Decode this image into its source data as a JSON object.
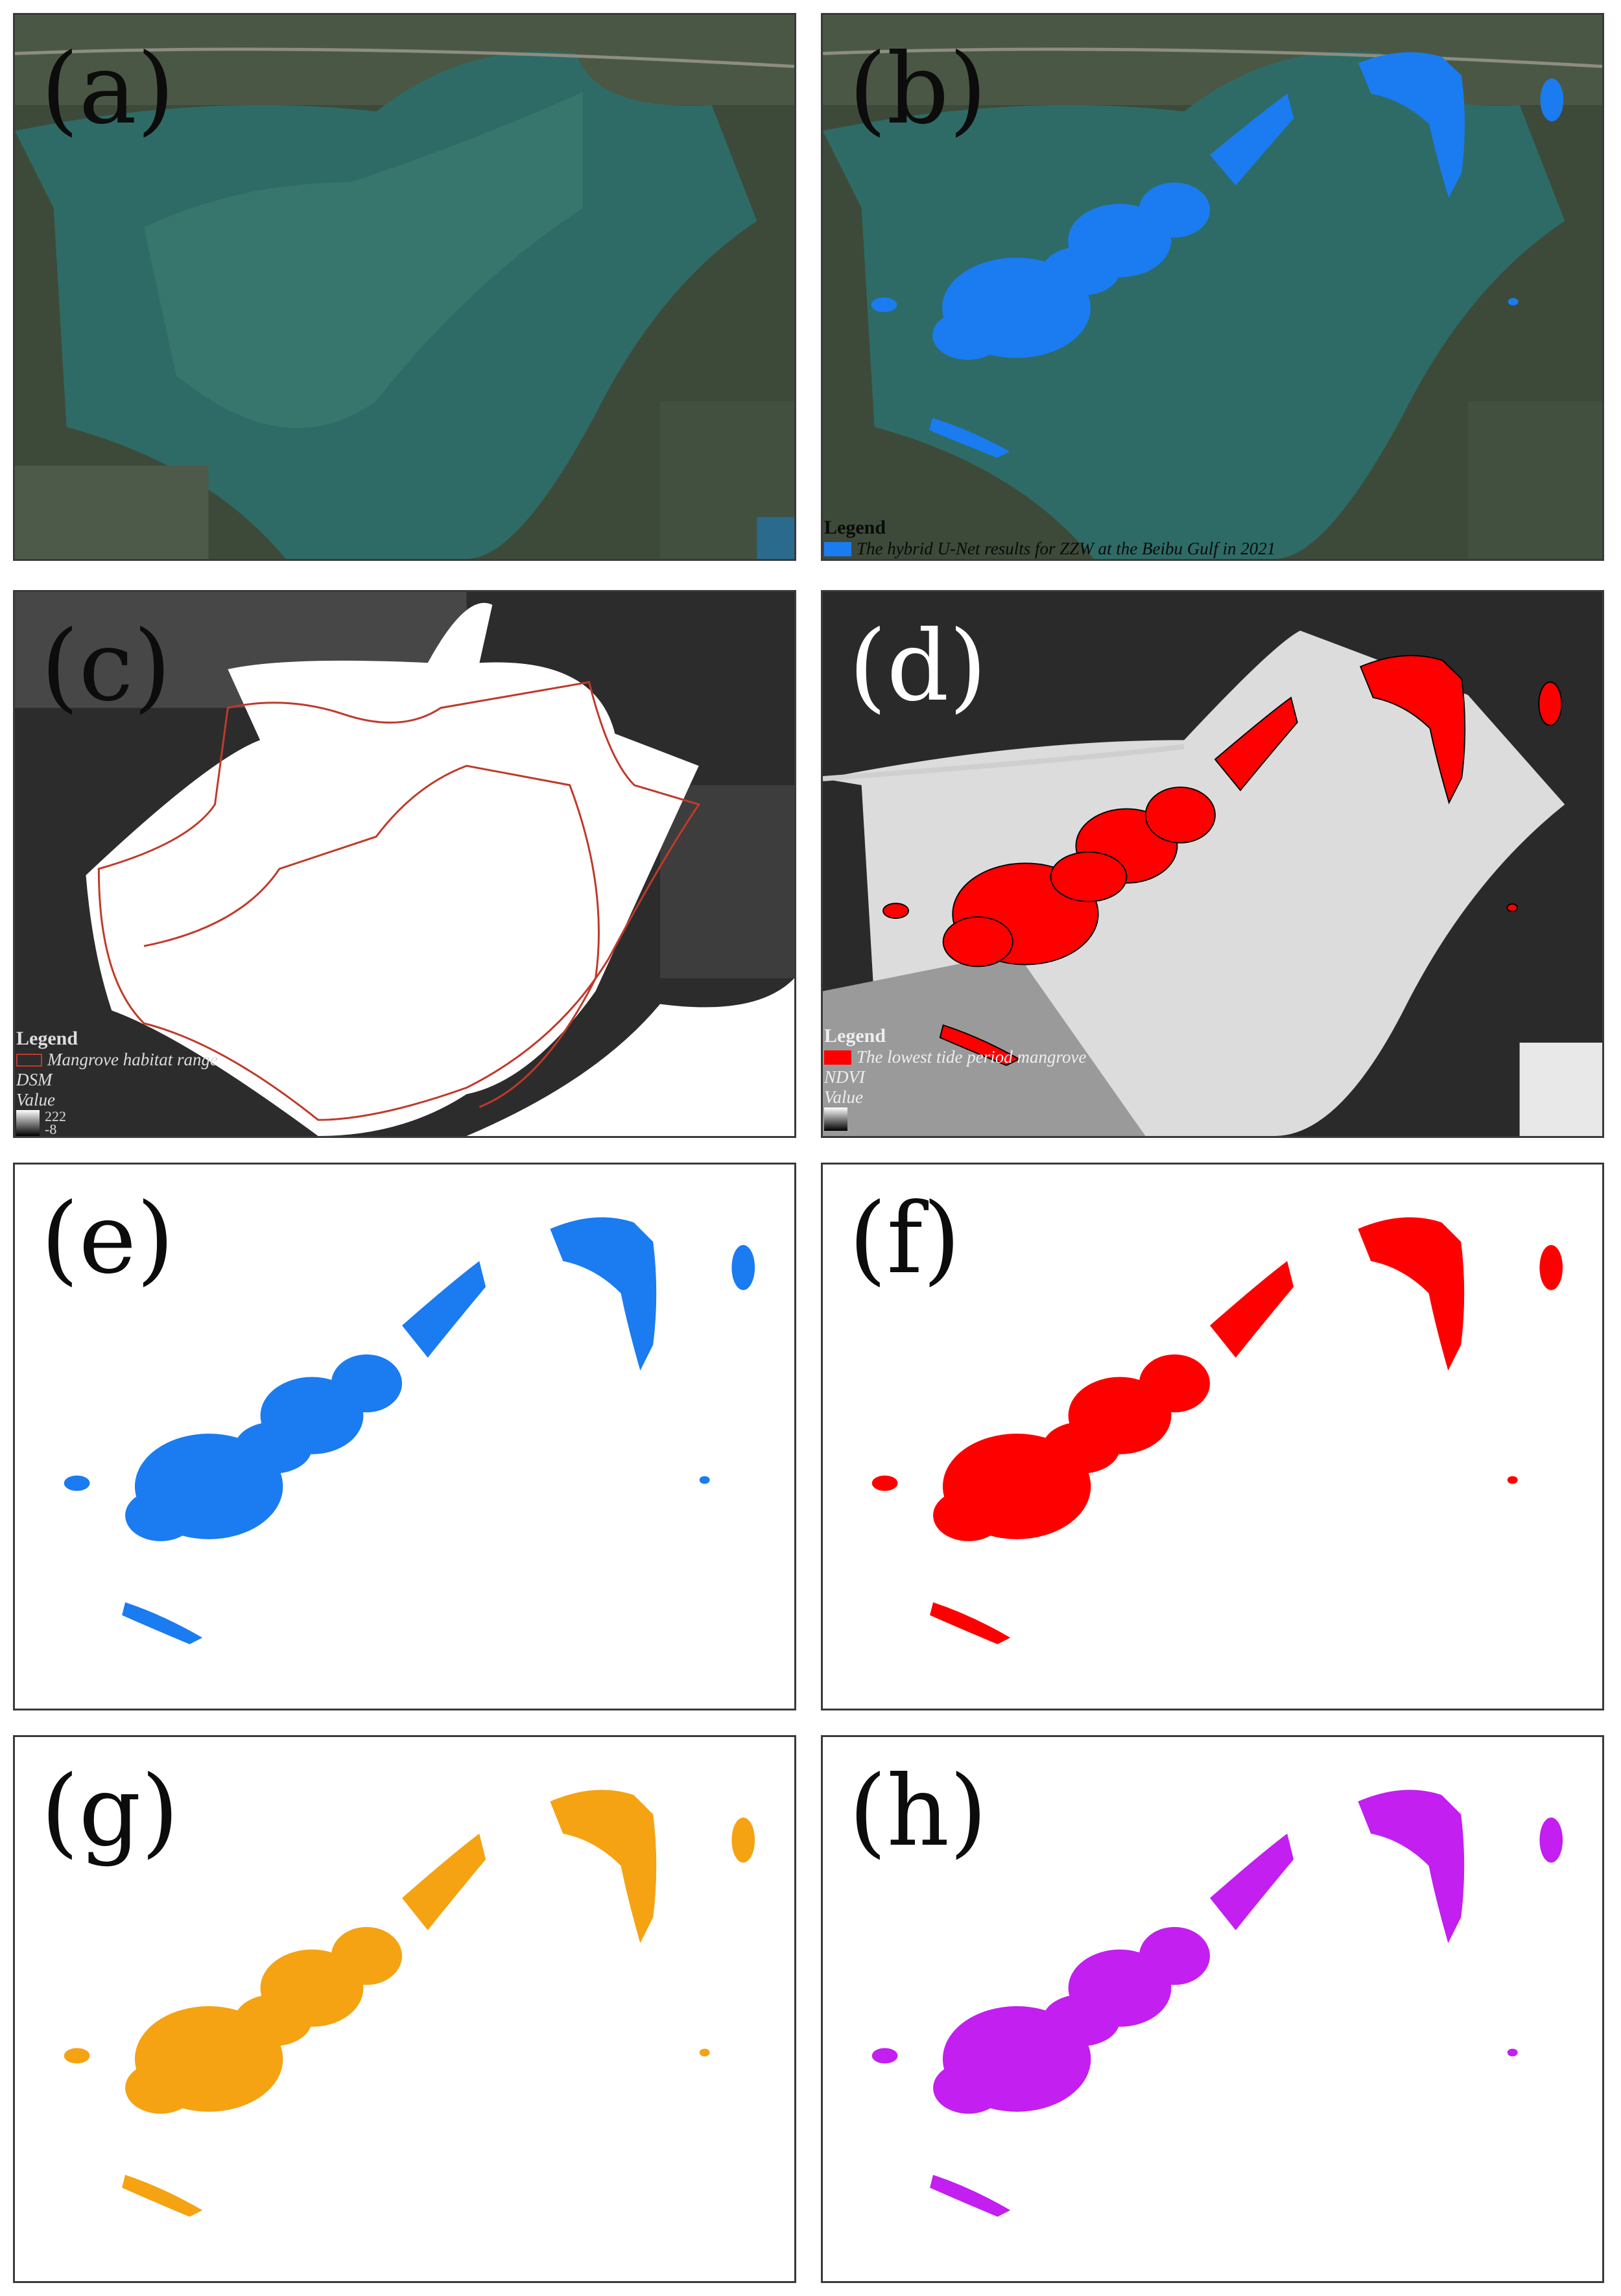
{
  "panels": {
    "a": {
      "label": "(a)"
    },
    "b": {
      "label": "(b)",
      "legend_title": "Legend",
      "legend_entry": "The hybrid U-Net results for ZZW at the Beibu Gulf in 2021",
      "color": "#1a7cf0"
    },
    "c": {
      "label": "(c)",
      "legend_title": "Legend",
      "legend_entry": "Mangrove habitat range",
      "layer": "DSM",
      "value_label": "Value",
      "value_high": "222",
      "value_low": "-8"
    },
    "d": {
      "label": "(d)",
      "legend_title": "Legend",
      "legend_entry": "The lowest tide period mangrove",
      "layer": "NDVI",
      "value_label": "Value",
      "color": "#ff0000"
    },
    "e": {
      "label": "(e)",
      "color": "#1a7cf0"
    },
    "f": {
      "label": "(f)",
      "color": "#ff0000"
    },
    "g": {
      "label": "(g)",
      "color": "#f5a312"
    },
    "h": {
      "label": "(h)",
      "color": "#c21ff0"
    }
  }
}
